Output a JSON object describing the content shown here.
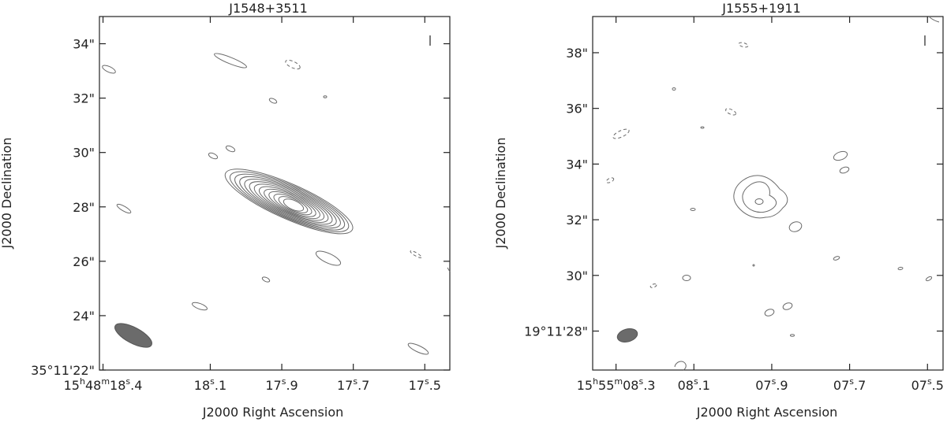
{
  "chart_data": [
    {
      "type": "contour",
      "title": "J1548+3511",
      "xlabel": "J2000 Right Ascension",
      "ylabel": "J2000 Declination",
      "x_ticks": [
        {
          "ra_s": 18.4,
          "main": "15",
          "sup1": "h",
          "mid": "48",
          "sup2": "m",
          "last": "18",
          "sup3": "s",
          "tail": ".4"
        },
        {
          "ra_s": 18.1,
          "main": "18",
          "sup1": "s",
          "tail": ".1"
        },
        {
          "ra_s": 17.9,
          "main": "17",
          "sup1": "s",
          "tail": ".9"
        },
        {
          "ra_s": 17.7,
          "main": "17",
          "sup1": "s",
          "tail": ".7"
        },
        {
          "ra_s": 17.5,
          "main": "17",
          "sup1": "s",
          "tail": ".5"
        }
      ],
      "y_ticks": [
        {
          "dec": 22,
          "label": "35°11'22\""
        },
        {
          "dec": 24,
          "label": "24\""
        },
        {
          "dec": 26,
          "label": "26\""
        },
        {
          "dec": 28,
          "label": "28\""
        },
        {
          "dec": 30,
          "label": "30\""
        },
        {
          "dec": 32,
          "label": "32\""
        },
        {
          "dec": 34,
          "label": "34\""
        }
      ],
      "xlim_ra_s": [
        18.41,
        17.43
      ],
      "ylim_dec_arcsec": [
        22.0,
        35.0
      ],
      "source": {
        "ra_s": 17.88,
        "dec": 28.2,
        "levels": 13
      },
      "beam": {
        "ra_s": 18.36,
        "dec": 23.2
      }
    },
    {
      "type": "contour",
      "title": "J1555+1911",
      "xlabel": "J2000 Right Ascension",
      "ylabel": "J2000 Declination",
      "x_ticks": [
        {
          "ra_s": 8.3,
          "main": "15",
          "sup1": "h",
          "mid": "55",
          "sup2": "m",
          "last": "08",
          "sup3": "s",
          "tail": ".3"
        },
        {
          "ra_s": 8.1,
          "main": "08",
          "sup1": "s",
          "tail": ".1"
        },
        {
          "ra_s": 7.9,
          "main": "07",
          "sup1": "s",
          "tail": ".9"
        },
        {
          "ra_s": 7.7,
          "main": "07",
          "sup1": "s",
          "tail": ".7"
        },
        {
          "ra_s": 7.5,
          "main": "07",
          "sup1": "s",
          "tail": ".5"
        }
      ],
      "y_ticks": [
        {
          "dec": 28,
          "label": "19°11'28\""
        },
        {
          "dec": 30,
          "label": "30\""
        },
        {
          "dec": 32,
          "label": "32\""
        },
        {
          "dec": 34,
          "label": "34\""
        },
        {
          "dec": 36,
          "label": "36\""
        },
        {
          "dec": 38,
          "label": "38\""
        }
      ],
      "xlim_ra_s": [
        8.36,
        7.46
      ],
      "ylim_dec_arcsec": [
        26.6,
        39.3
      ],
      "source": {
        "ra_s": 7.88,
        "dec": 32.9,
        "levels": 3
      },
      "beam": {
        "ra_s": 8.22,
        "dec": 27.8
      }
    }
  ]
}
